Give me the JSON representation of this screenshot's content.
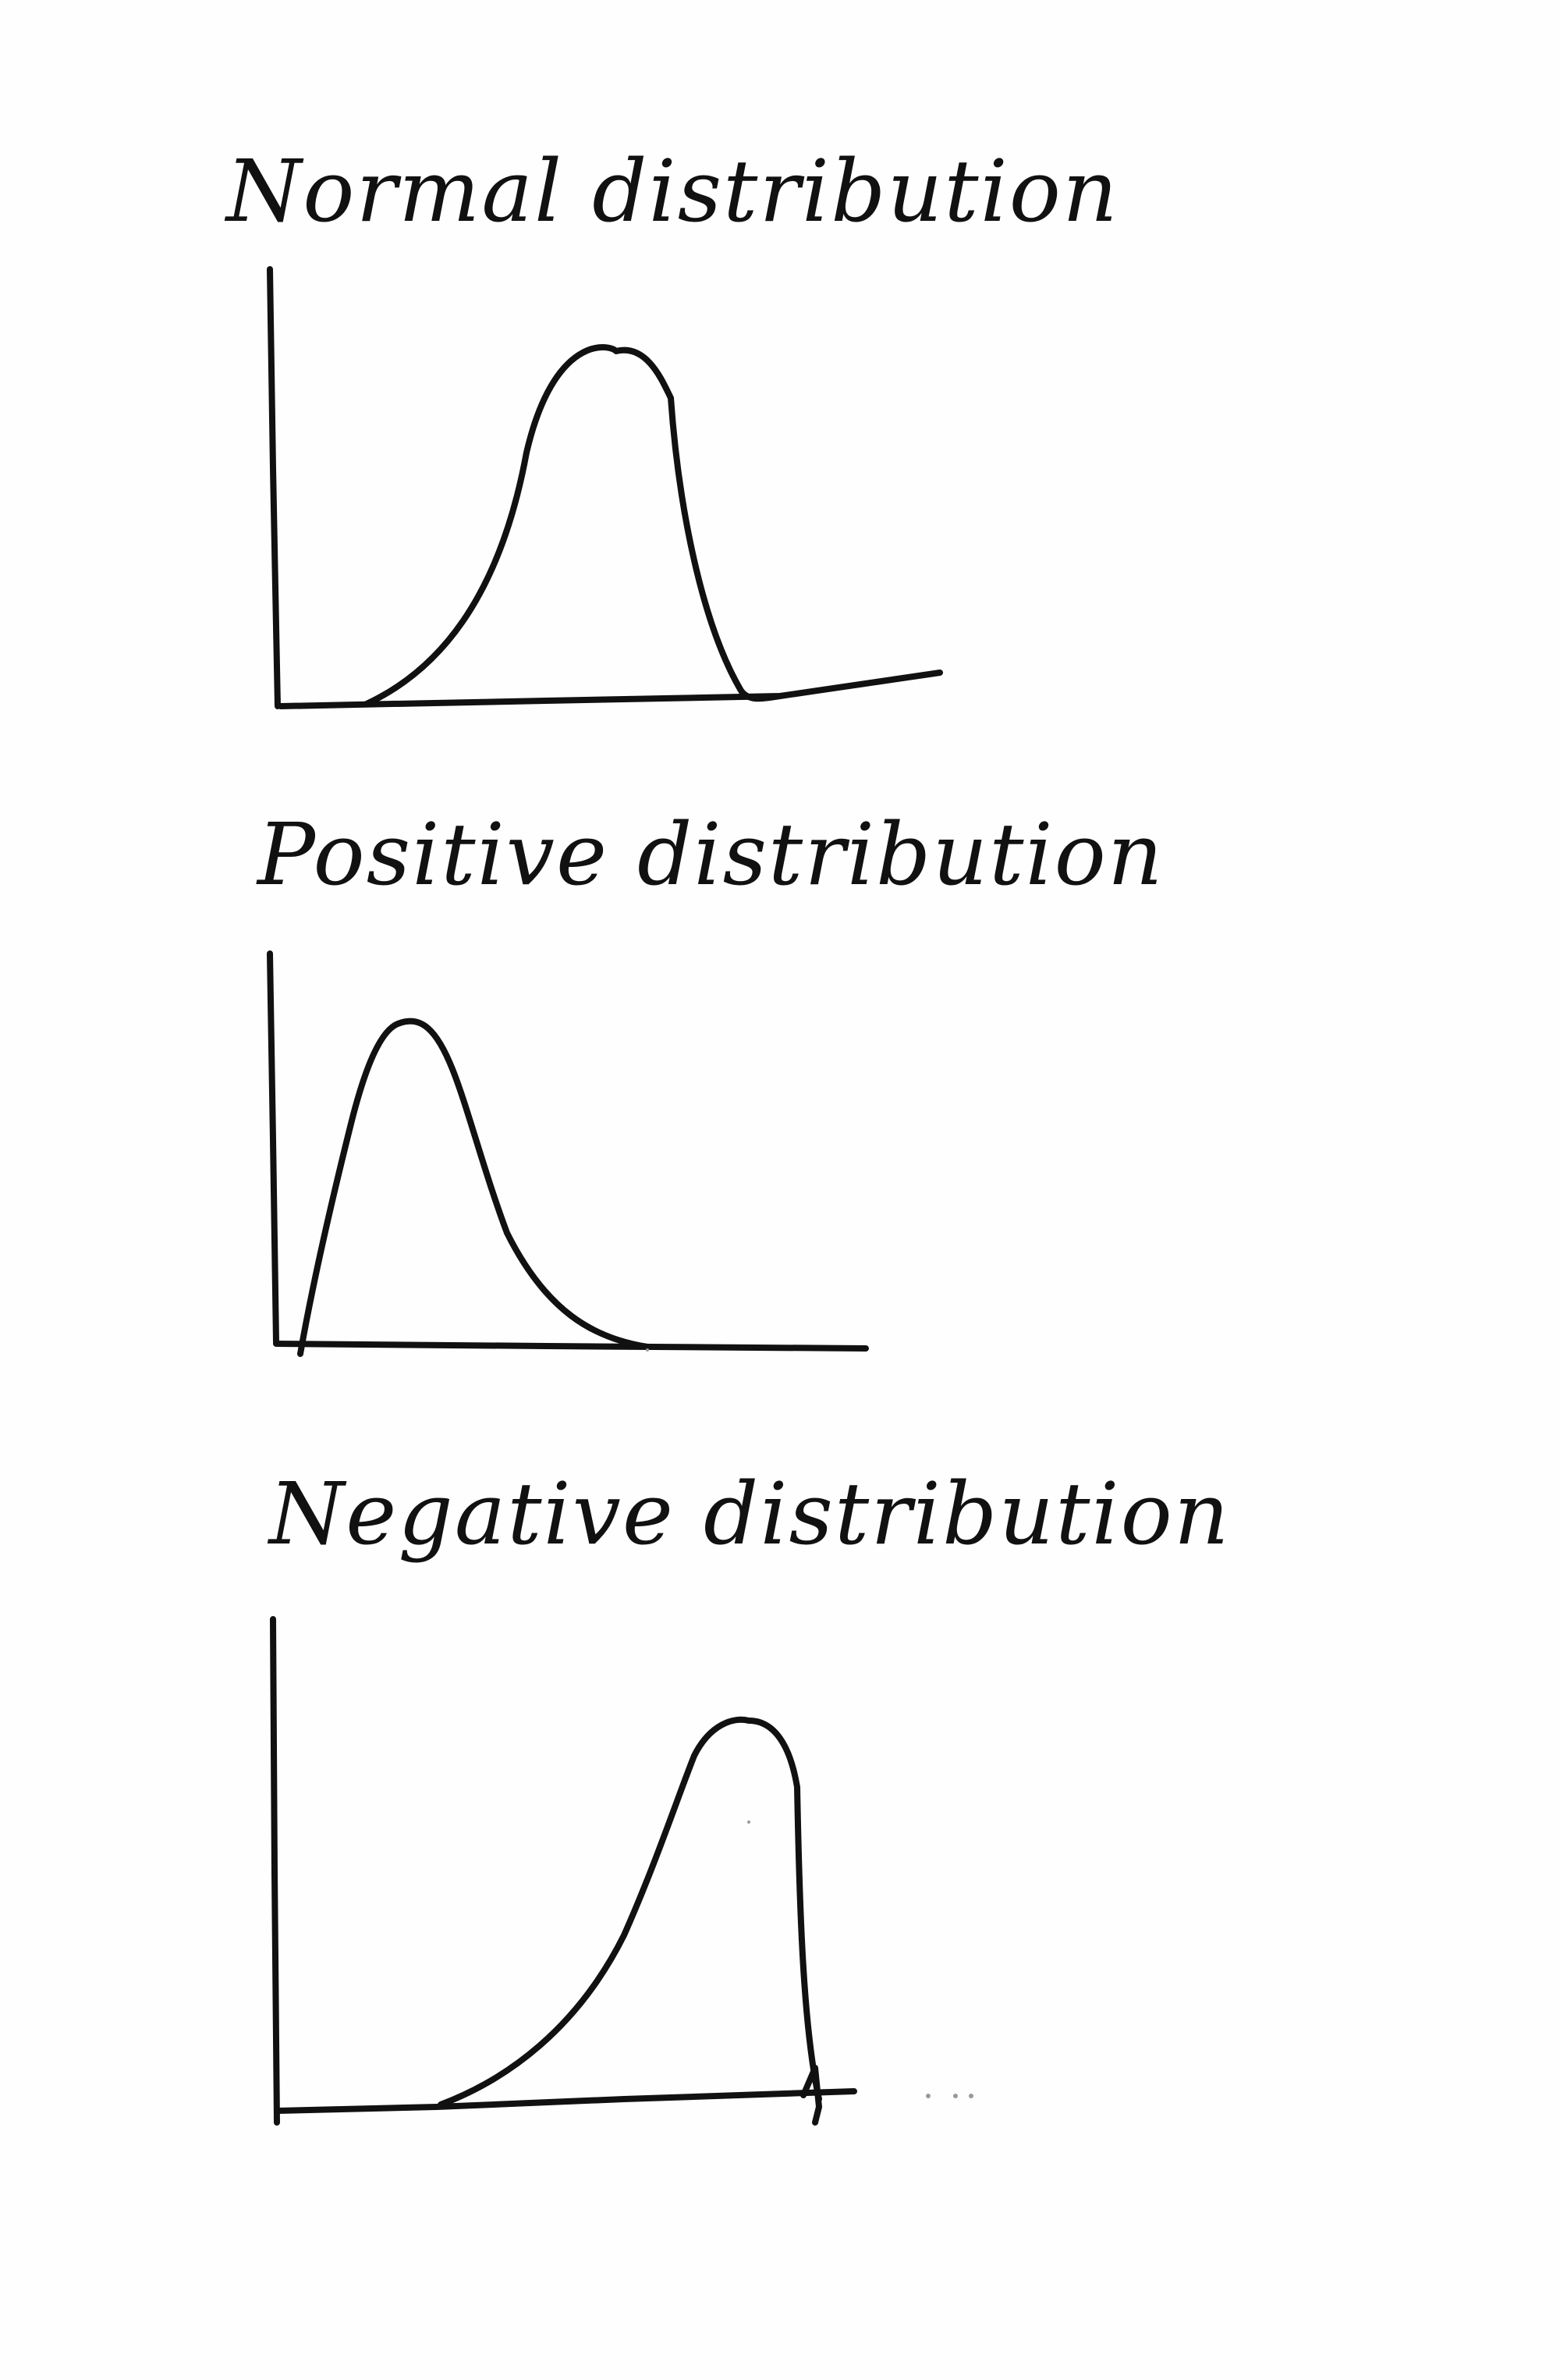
{
  "diagrams": [
    {
      "title": "Normal distribution",
      "shape": "symmetric"
    },
    {
      "title": "Positive distribution",
      "shape": "right-skewed"
    },
    {
      "title": "Negative distribution",
      "shape": "left-skewed"
    }
  ],
  "colors": {
    "ink": "#111111",
    "paper": "#fefefe"
  }
}
